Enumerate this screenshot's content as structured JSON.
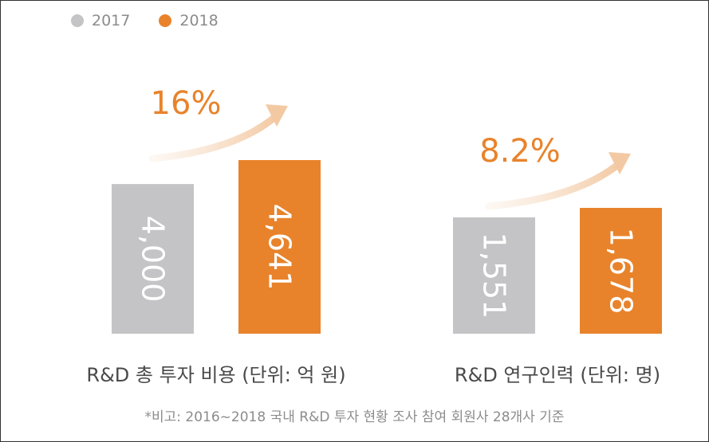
{
  "legend": [
    {
      "label": "2017",
      "color": "#c4c4c6"
    },
    {
      "label": "2018",
      "color": "#e8832b"
    }
  ],
  "chart_data": [
    {
      "type": "bar",
      "title": "R&D 총 투자 비용 (단위: 억 원)",
      "categories": [
        "2017",
        "2018"
      ],
      "values": [
        4000,
        4641
      ],
      "value_labels": [
        "4,000",
        "4,641"
      ],
      "growth_label": "16%",
      "colors": [
        "#c4c4c6",
        "#e8832b"
      ]
    },
    {
      "type": "bar",
      "title": "R&D 연구인력 (단위: 명)",
      "categories": [
        "2017",
        "2018"
      ],
      "values": [
        1551,
        1678
      ],
      "value_labels": [
        "1,551",
        "1,678"
      ],
      "growth_label": "8.2%",
      "colors": [
        "#c4c4c6",
        "#e8832b"
      ]
    }
  ],
  "footnote": "*비고: 2016~2018 국내 R&D 투자 현황 조사 참여 회원사 28개사 기준"
}
